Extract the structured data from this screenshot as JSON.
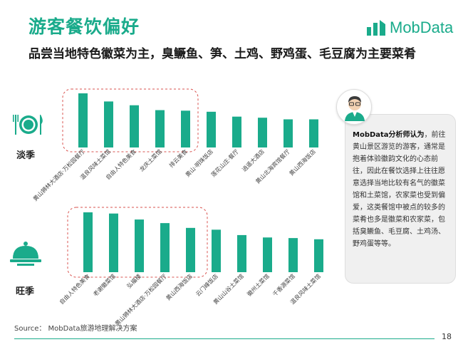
{
  "header": {
    "title": "游客餐饮偏好",
    "subtitle": "品尝当地特色徽菜为主，臭鳜鱼、笋、土鸡、野鸡蛋、毛豆腐为主要菜肴",
    "logo_text": "MobData"
  },
  "seasons": {
    "off": {
      "label": "淡季",
      "icon": "plate-fork-knife-icon"
    },
    "peak": {
      "label": "旺季",
      "icon": "serving-cloche-icon"
    }
  },
  "analyst": {
    "lead": "MobData分析师认为",
    "body": "，前往黄山景区游览的游客，通常是抱着体验徽韵文化的心态前往，因此在餐饮选择上往往愿意选择当地比较有名气的徽菜馆和土菜馆，农家菜也受到偏爱，这类餐馆中被点的较多的菜肴也多是徽菜和农家菜，包括臭鳜鱼、毛豆腐、土鸡汤、野鸡蛋等等。",
    "avatar_icon": "analyst-avatar-icon"
  },
  "footer": {
    "source": "Source： MobData旅游地理解决方案",
    "page_number": "18"
  },
  "colors": {
    "accent": "#1aab8b",
    "highlight_border": "#d9534f"
  },
  "chart_data": [
    {
      "type": "bar",
      "season": "淡季",
      "categories": [
        "黄山狮林大酒店·万松园餐厅",
        "温良风味土菜馆",
        "自由人特色美食",
        "龙庆土菜馆",
        "排云美食",
        "黄山·明珠饭店",
        "莲花山庄·餐厅",
        "逍遥大酒店",
        "黄山北海宾馆餐厅",
        "黄山西海饭店"
      ],
      "values": [
        100,
        85,
        78,
        69,
        68,
        66,
        57,
        55,
        52,
        52
      ],
      "highlighted_top": 5,
      "ylim": [
        0,
        100
      ]
    },
    {
      "type": "bar",
      "season": "旺季",
      "categories": [
        "自由人特色美食",
        "老谢徽菜馆",
        "弘福楼",
        "黄山狮林大酒店·万松园餐厅",
        "黄山西海饭店",
        "云门峰饭店",
        "黄山山谷土菜馆",
        "徽州土菜馆",
        "千香源菜馆",
        "温良风味土菜馆"
      ],
      "values": [
        100,
        98,
        88,
        82,
        74,
        71,
        62,
        58,
        57,
        55
      ],
      "highlighted_top": 5,
      "ylim": [
        0,
        100
      ]
    }
  ]
}
